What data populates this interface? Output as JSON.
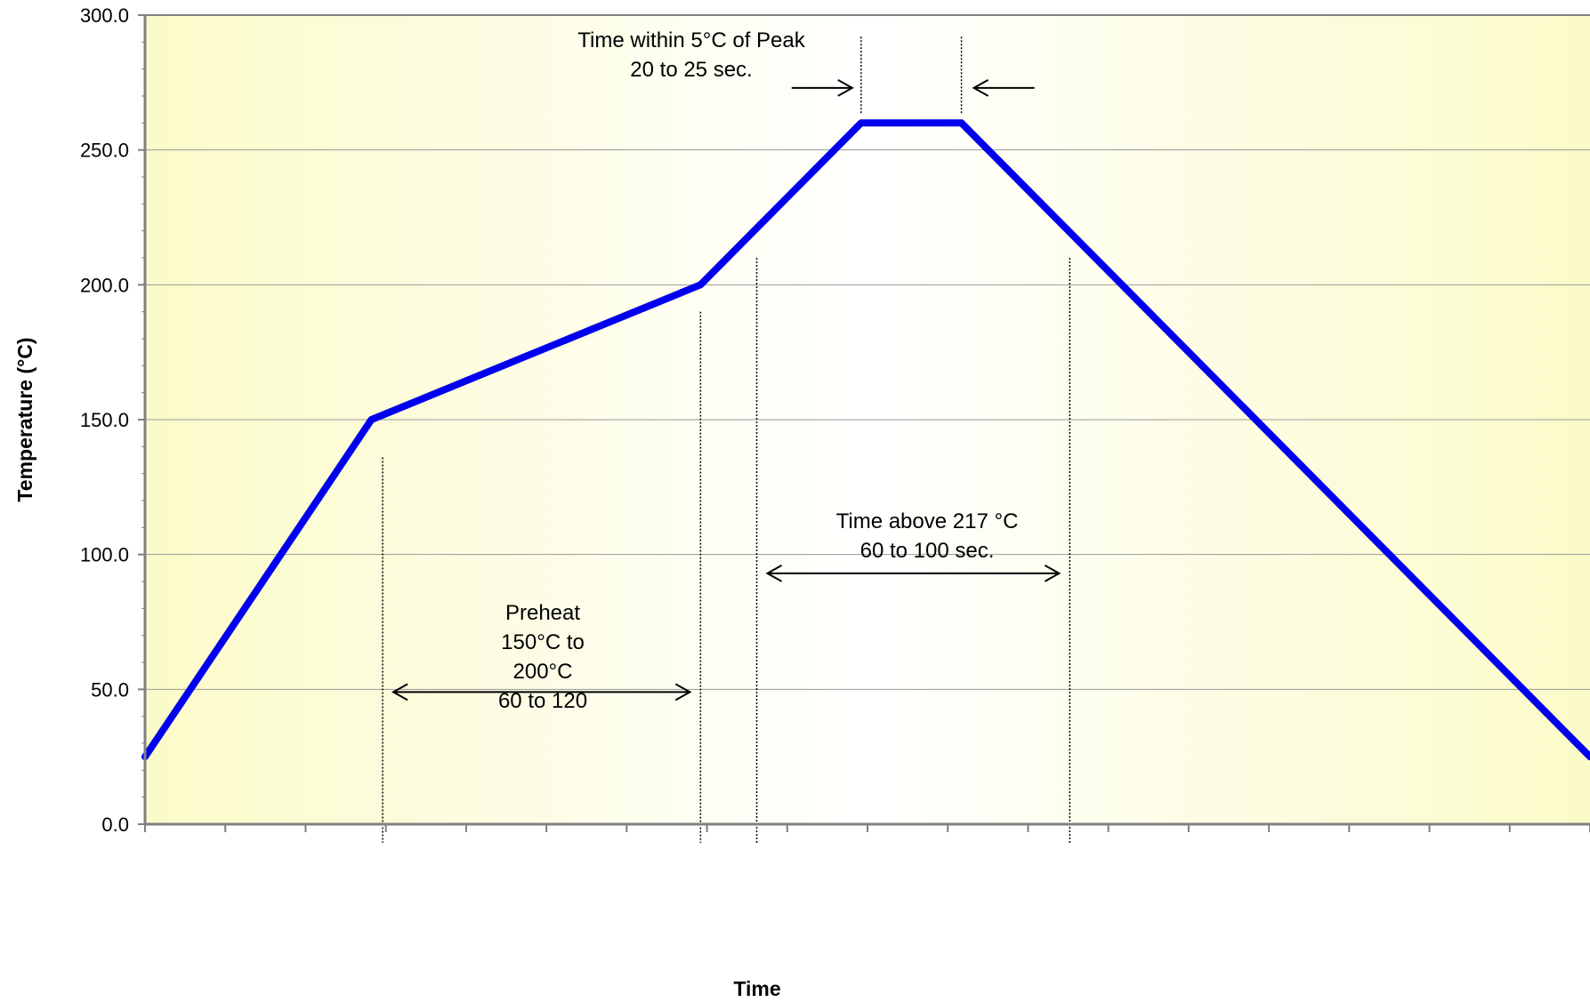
{
  "chart_data": {
    "type": "line",
    "title": "",
    "xlabel": "Time",
    "ylabel": "Temperature (°C)",
    "ylim": [
      0,
      300
    ],
    "xlim": [
      0,
      18
    ],
    "y_ticks": [
      "0.0",
      "50.0",
      "100.0",
      "150.0",
      "200.0",
      "250.0",
      "300.0"
    ],
    "y_tick_values": [
      0,
      50,
      100,
      150,
      200,
      250,
      300
    ],
    "x_minor_ticks": 18,
    "grid": "horizontal",
    "legend": "none",
    "series": [
      {
        "x": [
          0,
          2.82,
          6.92,
          8.92,
          10.17,
          18
        ],
        "y": [
          25,
          150,
          200,
          260,
          260,
          25
        ],
        "color": "#0000ee"
      }
    ],
    "annotations": {
      "peak": {
        "lines": [
          "Time within 5°C of Peak",
          "20 to 25 sec."
        ],
        "x_start": 8.92,
        "x_end": 10.17
      },
      "above": {
        "lines": [
          "Time above 217 °C",
          "60 to 100 sec."
        ],
        "x_start": 7.62,
        "x_end": 11.52
      },
      "preheat": {
        "lines": [
          "Preheat",
          "150°C to",
          "200°C",
          "60 to 120"
        ],
        "x_start": 2.96,
        "x_end": 6.92
      }
    },
    "colors": {
      "plot_bg_edge": "#fbfbc9",
      "plot_bg_center": "#ffffff",
      "line": "#0000ee",
      "grid": "#9a9a9a",
      "axis": "#808080"
    }
  }
}
